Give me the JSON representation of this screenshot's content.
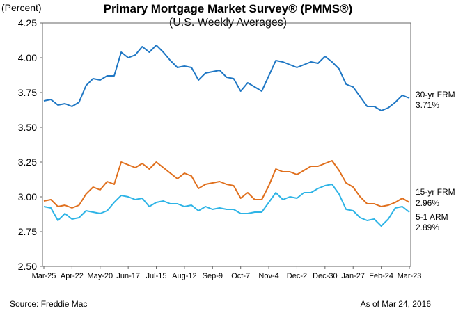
{
  "header": {
    "y_unit": "(Percent)",
    "title": "Primary Mortgage Market Survey® (PMMS®)",
    "subtitle": "(U.S. Weekly Averages)"
  },
  "footer": {
    "source": "Source: Freddie Mac",
    "as_of": "As of Mar 24, 2016"
  },
  "colors": {
    "frm30": "#1F77C4",
    "frm15": "#E0701E",
    "arm51": "#2EB4E6",
    "axis": "#666666"
  },
  "chart_data": {
    "type": "line",
    "title": "Primary Mortgage Market Survey® (PMMS®)",
    "subtitle": "(U.S. Weekly Averages)",
    "ylabel": "(Percent)",
    "xlabel": "",
    "ylim": [
      2.5,
      4.25
    ],
    "yticks": [
      "2.50",
      "2.75",
      "3.00",
      "3.25",
      "3.50",
      "3.75",
      "4.00",
      "4.25"
    ],
    "grid": false,
    "x_tick_labels": [
      "Mar-25",
      "Apr-22",
      "May-20",
      "Jun-17",
      "Jul-15",
      "Aug-12",
      "Sep-9",
      "Oct-7",
      "Nov-4",
      "Dec-2",
      "Dec-30",
      "Jan-27",
      "Feb-24",
      "Mar-23"
    ],
    "x_tick_weeks": [
      0,
      4,
      8,
      12,
      16,
      20,
      24,
      28,
      32,
      36,
      40,
      44,
      48,
      52
    ],
    "series": [
      {
        "name": "30-yr FRM",
        "end_label": "3.71%",
        "values": [
          3.69,
          3.7,
          3.66,
          3.67,
          3.65,
          3.68,
          3.8,
          3.85,
          3.84,
          3.87,
          3.87,
          4.04,
          4.0,
          4.02,
          4.08,
          4.04,
          4.09,
          4.04,
          3.98,
          3.93,
          3.94,
          3.93,
          3.84,
          3.89,
          3.9,
          3.91,
          3.86,
          3.85,
          3.76,
          3.82,
          3.79,
          3.76,
          3.87,
          3.98,
          3.97,
          3.95,
          3.93,
          3.95,
          3.97,
          3.96,
          4.01,
          3.97,
          3.92,
          3.81,
          3.79,
          3.72,
          3.65,
          3.65,
          3.62,
          3.64,
          3.68,
          3.73,
          3.71
        ]
      },
      {
        "name": "15-yr FRM",
        "end_label": "2.96%",
        "values": [
          2.97,
          2.98,
          2.93,
          2.94,
          2.92,
          2.94,
          3.02,
          3.07,
          3.05,
          3.11,
          3.09,
          3.25,
          3.23,
          3.21,
          3.24,
          3.2,
          3.25,
          3.21,
          3.17,
          3.13,
          3.17,
          3.15,
          3.06,
          3.09,
          3.1,
          3.11,
          3.09,
          3.08,
          2.99,
          3.03,
          2.98,
          2.98,
          3.08,
          3.2,
          3.18,
          3.18,
          3.16,
          3.19,
          3.22,
          3.22,
          3.24,
          3.26,
          3.19,
          3.1,
          3.07,
          3.0,
          2.95,
          2.95,
          2.93,
          2.94,
          2.96,
          2.99,
          2.96
        ]
      },
      {
        "name": "5-1 ARM",
        "end_label": "2.89%",
        "values": [
          2.93,
          2.92,
          2.83,
          2.88,
          2.84,
          2.85,
          2.9,
          2.89,
          2.88,
          2.9,
          2.96,
          3.01,
          3.0,
          2.98,
          2.99,
          2.93,
          2.96,
          2.97,
          2.95,
          2.95,
          2.93,
          2.94,
          2.9,
          2.93,
          2.91,
          2.92,
          2.91,
          2.91,
          2.88,
          2.88,
          2.89,
          2.89,
          2.96,
          3.03,
          2.98,
          3.0,
          2.99,
          3.03,
          3.03,
          3.06,
          3.08,
          3.09,
          3.02,
          2.91,
          2.9,
          2.85,
          2.83,
          2.84,
          2.79,
          2.84,
          2.92,
          2.93,
          2.89
        ]
      }
    ]
  }
}
